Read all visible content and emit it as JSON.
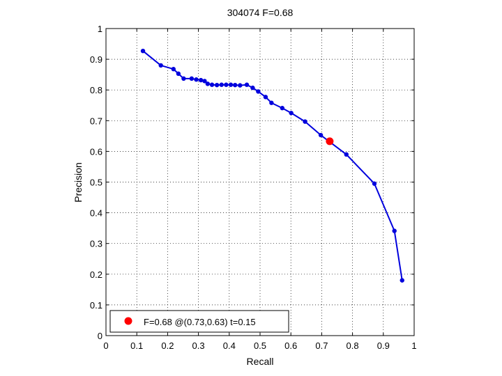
{
  "chart_data": {
    "type": "line",
    "title": "304074 F=0.68",
    "xlabel": "Recall",
    "ylabel": "Precision",
    "xlim": [
      0,
      1
    ],
    "ylim": [
      0,
      1
    ],
    "xticks": [
      "0",
      "0.1",
      "0.2",
      "0.3",
      "0.4",
      "0.5",
      "0.6",
      "0.7",
      "0.8",
      "0.9",
      "1"
    ],
    "yticks": [
      "0",
      "0.1",
      "0.2",
      "0.3",
      "0.4",
      "0.5",
      "0.6",
      "0.7",
      "0.8",
      "0.9",
      "1"
    ],
    "grid": true,
    "grid_style": "dotted",
    "series": [
      {
        "color": "#0000dd",
        "marker": "dot",
        "points": [
          [
            0.12,
            0.927
          ],
          [
            0.178,
            0.88
          ],
          [
            0.219,
            0.868
          ],
          [
            0.235,
            0.853
          ],
          [
            0.252,
            0.837
          ],
          [
            0.278,
            0.837
          ],
          [
            0.293,
            0.834
          ],
          [
            0.308,
            0.832
          ],
          [
            0.32,
            0.829
          ],
          [
            0.33,
            0.82
          ],
          [
            0.344,
            0.817
          ],
          [
            0.36,
            0.816
          ],
          [
            0.375,
            0.817
          ],
          [
            0.39,
            0.817
          ],
          [
            0.405,
            0.817
          ],
          [
            0.419,
            0.816
          ],
          [
            0.435,
            0.815
          ],
          [
            0.457,
            0.817
          ],
          [
            0.476,
            0.807
          ],
          [
            0.494,
            0.795
          ],
          [
            0.518,
            0.777
          ],
          [
            0.537,
            0.758
          ],
          [
            0.572,
            0.741
          ],
          [
            0.601,
            0.725
          ],
          [
            0.646,
            0.697
          ],
          [
            0.697,
            0.653
          ],
          [
            0.78,
            0.59
          ],
          [
            0.871,
            0.495
          ],
          [
            0.936,
            0.341
          ],
          [
            0.961,
            0.18
          ]
        ]
      }
    ],
    "best_point": {
      "x": 0.726,
      "y": 0.633,
      "color": "#ff0000",
      "label": "F=0.68 @(0.73,0.63) t=0.15"
    },
    "legend_position": "bottom-left"
  }
}
